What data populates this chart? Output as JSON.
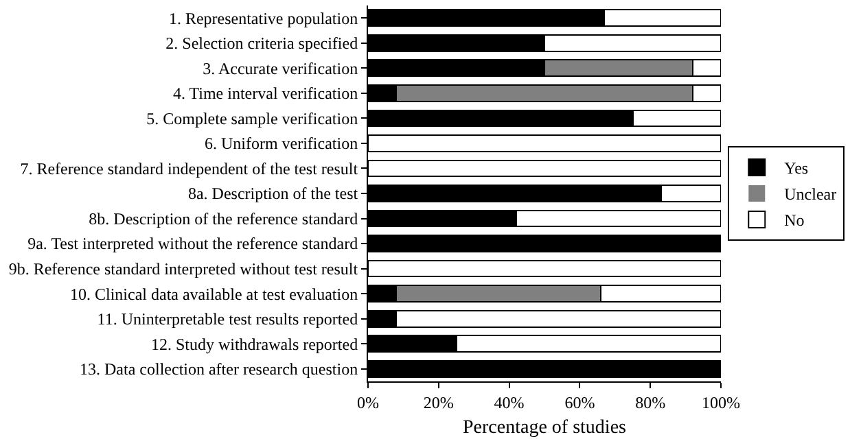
{
  "chart_data": {
    "type": "bar",
    "orientation": "horizontal",
    "stacked": true,
    "xlabel": "Percentage of studies",
    "categories": [
      "1. Representative population",
      "2. Selection criteria specified",
      "3. Accurate verification",
      "4. Time interval verification",
      "5. Complete sample verification",
      "6. Uniform verification",
      "7. Reference standard independent of the test result",
      "8a. Description of the test",
      "8b. Description of the reference standard",
      "9a. Test interpreted without the reference standard",
      "9b. Reference standard interpreted without test result",
      "10. Clinical data available at test evaluation",
      "11. Uninterpretable test results reported",
      "12. Study withdrawals reported",
      "13. Data collection after research question"
    ],
    "series": [
      {
        "name": "Yes",
        "color": "#000000",
        "values": [
          67,
          50,
          50,
          8,
          75,
          0,
          0,
          83,
          42,
          100,
          0,
          8,
          8,
          25,
          100
        ]
      },
      {
        "name": "Unclear",
        "color": "#808080",
        "values": [
          0,
          0,
          42,
          84,
          0,
          0,
          0,
          0,
          0,
          0,
          0,
          58,
          0,
          0,
          0
        ]
      },
      {
        "name": "No",
        "color": "#ffffff",
        "values": [
          33,
          50,
          8,
          8,
          25,
          100,
          100,
          17,
          58,
          0,
          100,
          34,
          92,
          75,
          0
        ]
      }
    ],
    "xlim": [
      0,
      100
    ],
    "xticks": [
      {
        "value": 0,
        "label": "0%"
      },
      {
        "value": 20,
        "label": "20%"
      },
      {
        "value": 40,
        "label": "40%"
      },
      {
        "value": 60,
        "label": "60%"
      },
      {
        "value": 80,
        "label": "80%"
      },
      {
        "value": 100,
        "label": "100%"
      }
    ],
    "grid": false,
    "legend": "right"
  }
}
